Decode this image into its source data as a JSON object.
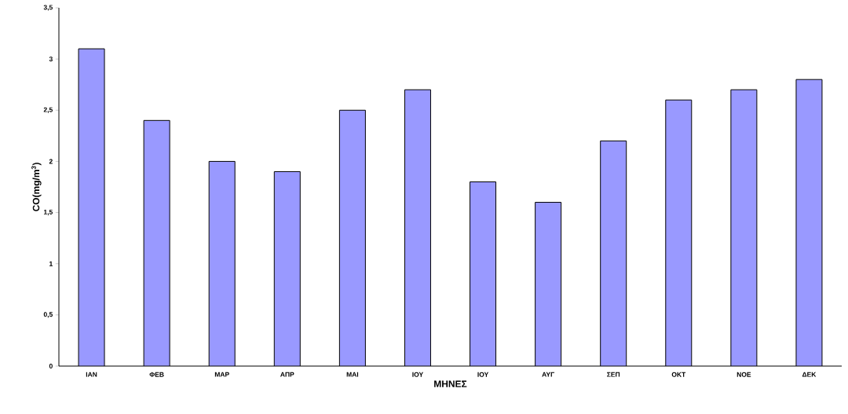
{
  "chart_data": {
    "type": "bar",
    "xlabel": "ΜΗΝΕΣ",
    "ylabel": "CO(mg/m$^{3}$)",
    "categories": [
      "ΙΑΝ",
      "ΦΕΒ",
      "ΜΑΡ",
      "ΑΠΡ",
      "ΜΑΙ",
      "ΙΟΥ",
      "ΙΟΥ",
      "ΑΥΓ",
      "ΣΕΠ",
      "ΟΚΤ",
      "ΝΟΕ",
      "ΔΕΚ"
    ],
    "values": [
      3.1,
      2.4,
      2.0,
      1.9,
      2.5,
      2.7,
      1.8,
      1.6,
      2.2,
      2.6,
      2.7,
      2.8
    ],
    "color": "#9999ff",
    "ylim": [
      0,
      3.5
    ],
    "yticks": [
      0,
      {
        "value": 0.5,
        "label": "0,5"
      },
      1,
      {
        "value": 1.5,
        "label": "1,5"
      },
      2,
      {
        "value": 2.5,
        "label": "2,5"
      },
      3,
      {
        "value": 3.5,
        "label": "3,5"
      }
    ]
  }
}
